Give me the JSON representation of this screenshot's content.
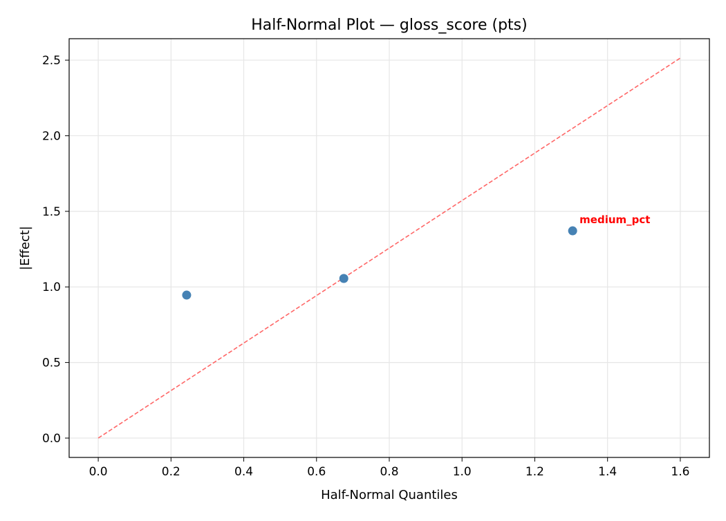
{
  "chart_data": {
    "type": "scatter",
    "title": "Half-Normal Plot — gloss_score (pts)",
    "xlabel": "Half-Normal Quantiles",
    "ylabel": "|Effect|",
    "xlim": [
      -0.08,
      1.68
    ],
    "ylim": [
      -0.128,
      2.642
    ],
    "xticks": [
      0.0,
      0.2,
      0.4,
      0.6,
      0.8,
      1.0,
      1.2,
      1.4,
      1.6
    ],
    "xtick_labels": [
      "0.0",
      "0.2",
      "0.4",
      "0.6",
      "0.8",
      "1.0",
      "1.2",
      "1.4",
      "1.6"
    ],
    "yticks": [
      0.0,
      0.5,
      1.0,
      1.5,
      2.0,
      2.5
    ],
    "ytick_labels": [
      "0.0",
      "0.5",
      "1.0",
      "1.5",
      "2.0",
      "2.5"
    ],
    "grid": true,
    "points": [
      {
        "x": 0.243,
        "y": 0.946,
        "label": ""
      },
      {
        "x": 0.675,
        "y": 1.056,
        "label": ""
      },
      {
        "x": 1.304,
        "y": 1.371,
        "label": "medium_pct"
      }
    ],
    "reference_line": {
      "x": [
        0.0,
        1.6
      ],
      "y": [
        0.0,
        2.514
      ],
      "style": "dashed"
    },
    "colors": {
      "points": "#4682b4",
      "reference_line": "#ff6666",
      "annotation": "#ff0000",
      "grid": "#e6e6e6"
    }
  }
}
